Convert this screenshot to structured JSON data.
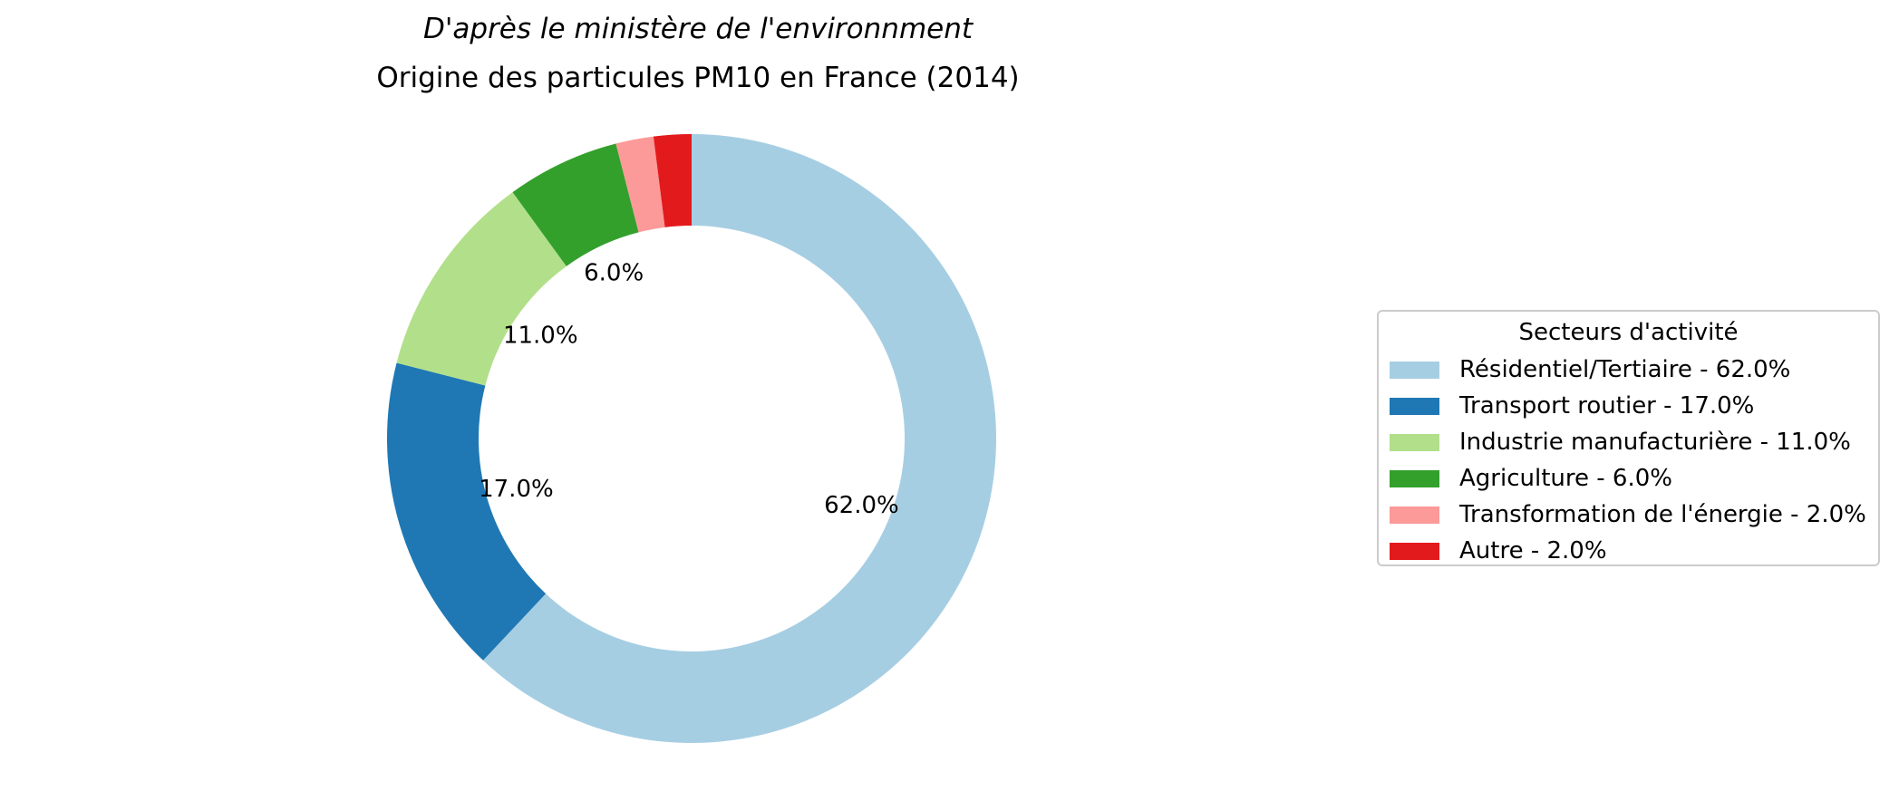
{
  "figure": {
    "subtitle": "D'après le ministère de l'environnment",
    "title": "Origine des particules PM10 en France (2014)"
  },
  "chart_data": {
    "type": "pie",
    "style": "donut",
    "start_angle_deg": 90,
    "direction": "clockwise",
    "title": "Origine des particules PM10 en France (2014)",
    "subtitle": "D'après le ministère de l'environnment",
    "legend_title": "Secteurs d'activité",
    "legend_position": "right",
    "slices": [
      {
        "label": "Résidentiel/Tertiaire",
        "value": 62.0,
        "pct_label": "62.0%",
        "legend_label": "Résidentiel/Tertiaire - 62.0%",
        "color": "#a6cee3",
        "show_pct": true
      },
      {
        "label": "Transport routier",
        "value": 17.0,
        "pct_label": "17.0%",
        "legend_label": "Transport routier - 17.0%",
        "color": "#1f78b4",
        "show_pct": true
      },
      {
        "label": "Industrie manufacturière",
        "value": 11.0,
        "pct_label": "11.0%",
        "legend_label": "Industrie manufacturière - 11.0%",
        "color": "#b2df8a",
        "show_pct": true
      },
      {
        "label": "Agriculture",
        "value": 6.0,
        "pct_label": "6.0%",
        "legend_label": "Agriculture - 6.0%",
        "color": "#33a02c",
        "show_pct": true
      },
      {
        "label": "Transformation de l'énergie",
        "value": 2.0,
        "pct_label": "2.0%",
        "legend_label": "Transformation de l'énergie - 2.0%",
        "color": "#fb9a99",
        "show_pct": false
      },
      {
        "label": "Autre",
        "value": 2.0,
        "pct_label": "2.0%",
        "legend_label": "Autre - 2.0%",
        "color": "#e31a1c",
        "show_pct": false
      }
    ]
  }
}
